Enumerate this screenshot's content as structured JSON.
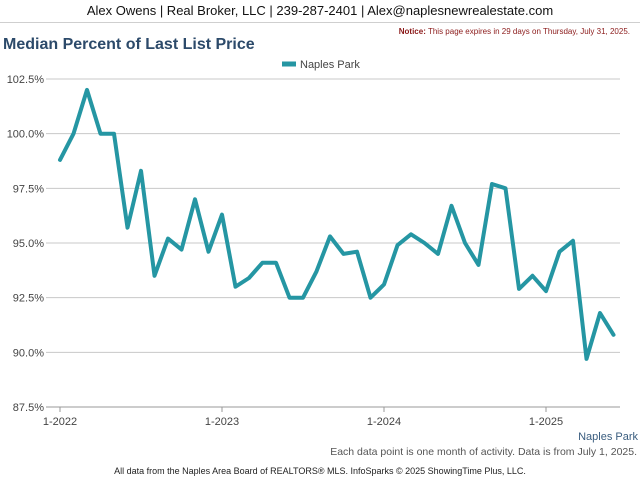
{
  "header": {
    "contact": "Alex Owens | Real Broker, LLC | 239-287-2401 | Alex@naplesnewrealestate.com"
  },
  "notice": {
    "label": "Notice:",
    "text": " This page expires in 29 days on Thursday, July 31, 2025."
  },
  "footer": {
    "note": "Each data point is one month of activity. Data is from July 1, 2025.",
    "source": "All data from the Naples Area Board of REALTORS® MLS. InfoSparks © 2025 ShowingTime Plus, LLC."
  },
  "chart_data": {
    "type": "line",
    "title": "Median Percent of Last List Price",
    "legend_position": "top-center",
    "grid": true,
    "ylim": [
      87.5,
      102.5
    ],
    "y_ticks": [
      87.5,
      90.0,
      92.5,
      95.0,
      97.5,
      100.0,
      102.5
    ],
    "y_tick_labels": [
      "87.5%",
      "90.0%",
      "92.5%",
      "95.0%",
      "97.5%",
      "100.0%",
      "102.5%"
    ],
    "x_tick_labels": [
      "1-2022",
      "1-2023",
      "1-2024",
      "1-2025"
    ],
    "x_end_label": "Naples Park",
    "x_start": "2022-01",
    "series": [
      {
        "name": "Naples Park",
        "color": "#2596a3",
        "values": [
          98.8,
          100.0,
          102.0,
          100.0,
          100.0,
          95.7,
          98.3,
          93.5,
          95.2,
          94.7,
          97.0,
          94.6,
          96.3,
          93.0,
          93.4,
          94.1,
          94.1,
          92.5,
          92.5,
          93.7,
          95.3,
          94.5,
          94.6,
          92.5,
          93.1,
          94.9,
          95.4,
          95.0,
          94.5,
          96.7,
          95.0,
          94.0,
          97.7,
          97.5,
          92.9,
          93.5,
          92.8,
          94.6,
          95.1,
          89.7,
          91.8,
          90.8
        ]
      }
    ]
  }
}
